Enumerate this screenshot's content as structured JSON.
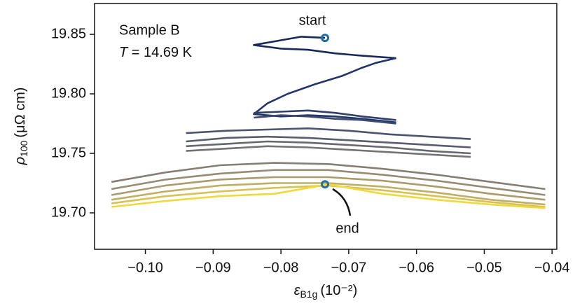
{
  "chart_data": {
    "type": "line",
    "xlabel": {
      "symbol": "ε",
      "sub": "B1g",
      "unit": "(10⁻²)"
    },
    "ylabel": {
      "symbol": "ρ",
      "sub": "100",
      "unit": "(μΩ cm)"
    },
    "annotations": {
      "sample": "Sample B",
      "temperature": {
        "symbol": "T",
        "text": " = 14.69 K"
      }
    },
    "markers": [
      {
        "label": "start",
        "x": -0.0735,
        "y": 19.847,
        "color": "#1f6fa8"
      },
      {
        "label": "end",
        "x": -0.0735,
        "y": 19.724,
        "color": "#1f6fa8"
      }
    ],
    "xlim": [
      -0.1075,
      -0.0393
    ],
    "ylim": [
      19.6694,
      19.8759
    ],
    "xticks": [
      {
        "value": -0.1,
        "label": "−0.10"
      },
      {
        "value": -0.09,
        "label": "−0.09"
      },
      {
        "value": -0.08,
        "label": "−0.08"
      },
      {
        "value": -0.07,
        "label": "−0.07"
      },
      {
        "value": -0.06,
        "label": "−0.06"
      },
      {
        "value": -0.05,
        "label": "−0.05"
      },
      {
        "value": -0.04,
        "label": "−0.04"
      }
    ],
    "yticks": [
      {
        "value": 19.7,
        "label": "19.70"
      },
      {
        "value": 19.75,
        "label": "19.75"
      },
      {
        "value": 19.8,
        "label": "19.80"
      },
      {
        "value": 19.85,
        "label": "19.85"
      }
    ],
    "series": [
      {
        "color": "#16295a",
        "x": [
          -0.0735,
          -0.077,
          -0.08,
          -0.084,
          -0.08,
          -0.076,
          -0.072,
          -0.068,
          -0.063
        ],
        "values": [
          19.847,
          19.848,
          19.845,
          19.841,
          19.838,
          19.837,
          19.834,
          19.832,
          19.83
        ]
      },
      {
        "color": "#22366a",
        "x": [
          -0.063,
          -0.066,
          -0.068,
          -0.071,
          -0.075,
          -0.079,
          -0.082,
          -0.084,
          -0.08,
          -0.076,
          -0.072,
          -0.068,
          -0.063
        ],
        "values": [
          19.83,
          19.826,
          19.822,
          19.815,
          19.808,
          19.8,
          19.792,
          19.783,
          19.781,
          19.782,
          19.781,
          19.779,
          19.776
        ]
      },
      {
        "color": "#2f406c",
        "x": [
          -0.084,
          -0.08,
          -0.076,
          -0.072,
          -0.068,
          -0.063
        ],
        "values": [
          19.784,
          19.785,
          19.786,
          19.784,
          19.781,
          19.778
        ]
      },
      {
        "color": "#3e4a6e",
        "x": [
          -0.084,
          -0.08,
          -0.076,
          -0.072,
          -0.068,
          -0.063
        ],
        "values": [
          19.78,
          19.782,
          19.781,
          19.779,
          19.778,
          19.775
        ]
      },
      {
        "color": "#4a546f",
        "x": [
          -0.094,
          -0.088,
          -0.082,
          -0.076,
          -0.07,
          -0.064,
          -0.058,
          -0.052
        ],
        "values": [
          19.767,
          19.769,
          19.77,
          19.771,
          19.769,
          19.766,
          19.764,
          19.762
        ]
      },
      {
        "color": "#585e70",
        "x": [
          -0.094,
          -0.088,
          -0.082,
          -0.076,
          -0.07,
          -0.064,
          -0.058,
          -0.052
        ],
        "values": [
          19.76,
          19.763,
          19.764,
          19.763,
          19.761,
          19.759,
          19.757,
          19.755
        ]
      },
      {
        "color": "#666871",
        "x": [
          -0.094,
          -0.088,
          -0.082,
          -0.076,
          -0.07,
          -0.064,
          -0.058,
          -0.052
        ],
        "values": [
          19.756,
          19.758,
          19.76,
          19.759,
          19.757,
          19.755,
          19.752,
          19.75
        ]
      },
      {
        "color": "#747273",
        "x": [
          -0.094,
          -0.088,
          -0.082,
          -0.076,
          -0.07,
          -0.064,
          -0.058,
          -0.052
        ],
        "values": [
          19.752,
          19.754,
          19.756,
          19.755,
          19.753,
          19.751,
          19.749,
          19.747
        ]
      },
      {
        "color": "#857e75",
        "x": [
          -0.105,
          -0.097,
          -0.089,
          -0.081,
          -0.073,
          -0.065,
          -0.057,
          -0.049,
          -0.041
        ],
        "values": [
          19.726,
          19.734,
          19.74,
          19.742,
          19.741,
          19.737,
          19.732,
          19.726,
          19.72
        ]
      },
      {
        "color": "#978b72",
        "x": [
          -0.105,
          -0.097,
          -0.089,
          -0.081,
          -0.073,
          -0.065,
          -0.057,
          -0.049,
          -0.041
        ],
        "values": [
          19.72,
          19.728,
          19.733,
          19.736,
          19.736,
          19.732,
          19.727,
          19.721,
          19.715
        ]
      },
      {
        "color": "#ab9b6c",
        "x": [
          -0.105,
          -0.097,
          -0.089,
          -0.081,
          -0.073,
          -0.065,
          -0.057,
          -0.049,
          -0.041
        ],
        "values": [
          19.715,
          19.723,
          19.728,
          19.73,
          19.73,
          19.727,
          19.722,
          19.716,
          19.711
        ]
      },
      {
        "color": "#c1ad63",
        "x": [
          -0.105,
          -0.097,
          -0.089,
          -0.081,
          -0.073,
          -0.065,
          -0.057,
          -0.049,
          -0.041
        ],
        "values": [
          19.711,
          19.718,
          19.723,
          19.725,
          19.725,
          19.722,
          19.717,
          19.711,
          19.707
        ]
      },
      {
        "color": "#d8c254",
        "x": [
          -0.105,
          -0.097,
          -0.089,
          -0.081,
          -0.073,
          -0.065,
          -0.057,
          -0.049,
          -0.041
        ],
        "values": [
          19.708,
          19.714,
          19.718,
          19.721,
          19.723,
          19.719,
          19.714,
          19.709,
          19.705
        ]
      },
      {
        "color": "#f0d93c",
        "x": [
          -0.105,
          -0.097,
          -0.089,
          -0.081,
          -0.073,
          -0.065,
          -0.057,
          -0.049,
          -0.041
        ],
        "values": [
          19.705,
          19.71,
          19.714,
          19.716,
          19.724,
          19.716,
          19.711,
          19.707,
          19.704
        ]
      }
    ]
  }
}
